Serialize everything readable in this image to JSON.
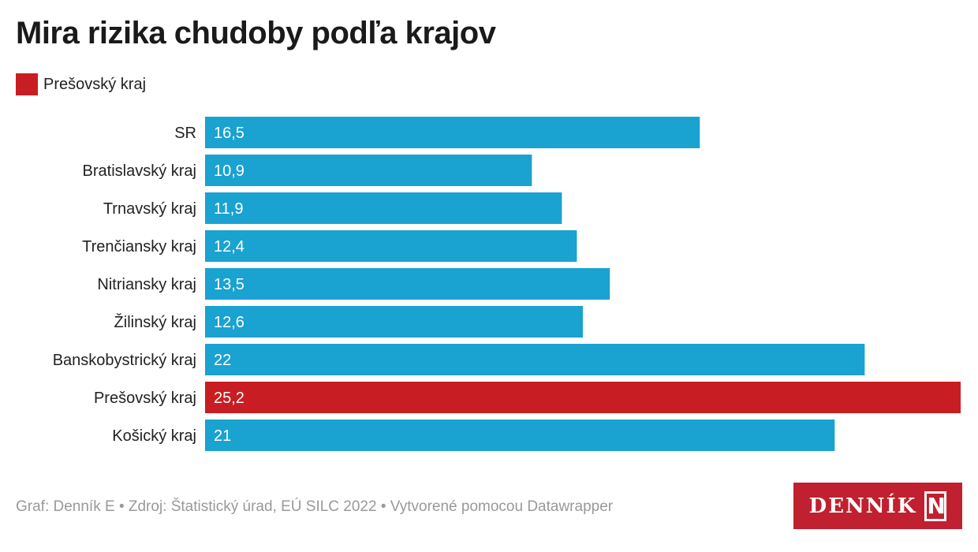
{
  "chart_data": {
    "type": "bar",
    "orientation": "horizontal",
    "title": "Mira rizika chudoby podľa krajov",
    "legend": [
      {
        "label": "Prešovský kraj",
        "color": "#c81d22"
      }
    ],
    "categories": [
      "SR",
      "Bratislavský kraj",
      "Trnavský kraj",
      "Trenčiansky kraj",
      "Nitriansky kraj",
      "Žilinský kraj",
      "Banskobystrický kraj",
      "Prešovský kraj",
      "Košický kraj"
    ],
    "values": [
      16.5,
      10.9,
      11.9,
      12.4,
      13.5,
      12.6,
      22,
      25.2,
      21
    ],
    "value_labels": [
      "16,5",
      "10,9",
      "11,9",
      "12,4",
      "13,5",
      "12,6",
      "22",
      "25,2",
      "21"
    ],
    "highlight": [
      "Prešovský kraj"
    ],
    "colors": {
      "default": "#1aa2d0",
      "highlight": "#c81d22"
    },
    "xlim": [
      0,
      25.2
    ]
  },
  "footer": "Graf: Denník E • Zdroj: Štatistický úrad, EÚ SILC 2022 • Vytvorené pomocou Datawrapper",
  "logo": {
    "text": "DENNÍK",
    "mark": "N"
  }
}
